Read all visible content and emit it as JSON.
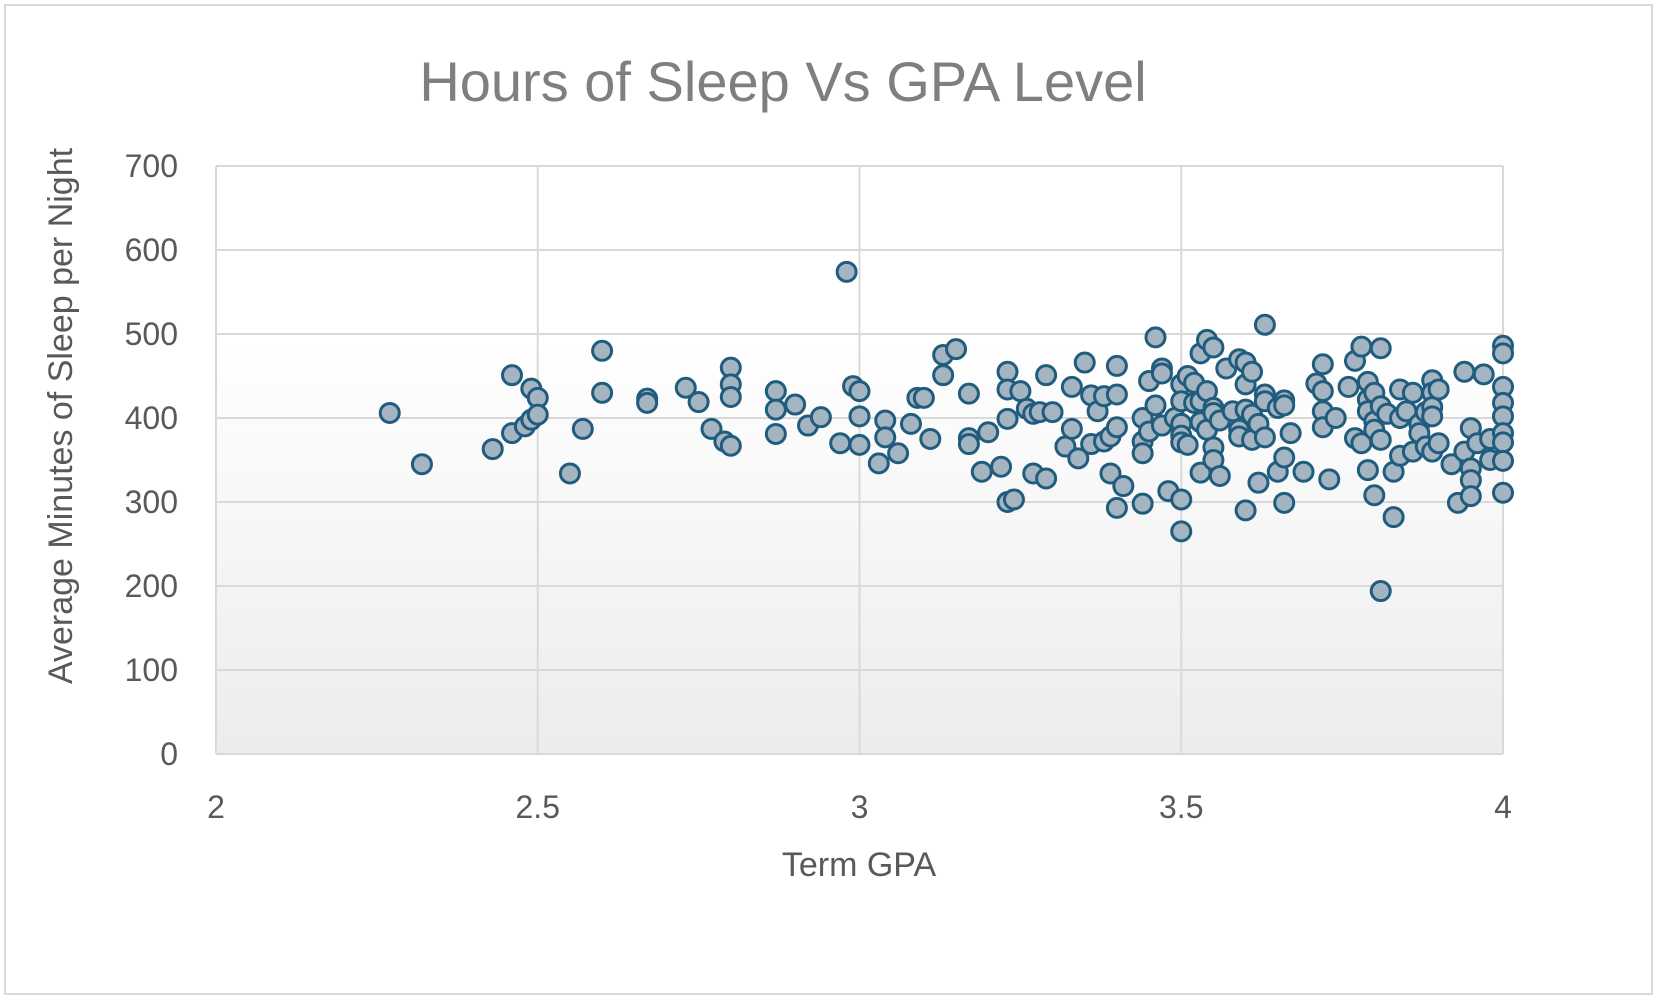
{
  "chart_data": {
    "type": "scatter",
    "title": "Hours of Sleep Vs GPA Level",
    "xlabel": "Term GPA",
    "ylabel": "Average Minutes of Sleep per Night",
    "xlim": [
      2,
      4
    ],
    "ylim": [
      0,
      700
    ],
    "xticks": [
      "2",
      "2.5",
      "3",
      "3.5",
      "4"
    ],
    "yticks": [
      "0",
      "100",
      "200",
      "300",
      "400",
      "500",
      "600",
      "700"
    ],
    "grid": true,
    "legend": "none",
    "marker_fill": "#a5b4c1",
    "marker_stroke": "#1f5c7e",
    "points": [
      [
        2.27,
        406
      ],
      [
        2.32,
        345
      ],
      [
        2.43,
        363
      ],
      [
        2.46,
        451
      ],
      [
        2.46,
        382
      ],
      [
        2.48,
        390
      ],
      [
        2.49,
        435
      ],
      [
        2.49,
        398
      ],
      [
        2.5,
        424
      ],
      [
        2.5,
        404
      ],
      [
        2.55,
        334
      ],
      [
        2.57,
        387
      ],
      [
        2.6,
        480
      ],
      [
        2.6,
        430
      ],
      [
        2.67,
        423
      ],
      [
        2.67,
        418
      ],
      [
        2.73,
        436
      ],
      [
        2.75,
        419
      ],
      [
        2.77,
        387
      ],
      [
        2.79,
        372
      ],
      [
        2.8,
        460
      ],
      [
        2.8,
        440
      ],
      [
        2.8,
        425
      ],
      [
        2.8,
        367
      ],
      [
        2.87,
        432
      ],
      [
        2.87,
        410
      ],
      [
        2.87,
        381
      ],
      [
        2.9,
        416
      ],
      [
        2.92,
        391
      ],
      [
        2.94,
        401
      ],
      [
        2.97,
        370
      ],
      [
        2.98,
        574
      ],
      [
        2.99,
        438
      ],
      [
        3.0,
        432
      ],
      [
        3.0,
        402
      ],
      [
        3.0,
        368
      ],
      [
        3.03,
        346
      ],
      [
        3.04,
        397
      ],
      [
        3.04,
        377
      ],
      [
        3.06,
        358
      ],
      [
        3.08,
        393
      ],
      [
        3.09,
        424
      ],
      [
        3.1,
        424
      ],
      [
        3.11,
        375
      ],
      [
        3.13,
        475
      ],
      [
        3.13,
        451
      ],
      [
        3.15,
        482
      ],
      [
        3.17,
        429
      ],
      [
        3.17,
        376
      ],
      [
        3.17,
        369
      ],
      [
        3.19,
        336
      ],
      [
        3.2,
        383
      ],
      [
        3.22,
        342
      ],
      [
        3.23,
        455
      ],
      [
        3.23,
        434
      ],
      [
        3.23,
        399
      ],
      [
        3.23,
        300
      ],
      [
        3.24,
        303
      ],
      [
        3.25,
        432
      ],
      [
        3.26,
        411
      ],
      [
        3.27,
        405
      ],
      [
        3.27,
        334
      ],
      [
        3.28,
        407
      ],
      [
        3.29,
        451
      ],
      [
        3.29,
        328
      ],
      [
        3.3,
        407
      ],
      [
        3.32,
        366
      ],
      [
        3.33,
        437
      ],
      [
        3.33,
        387
      ],
      [
        3.34,
        352
      ],
      [
        3.35,
        466
      ],
      [
        3.36,
        427
      ],
      [
        3.36,
        369
      ],
      [
        3.37,
        408
      ],
      [
        3.38,
        426
      ],
      [
        3.38,
        372
      ],
      [
        3.39,
        378
      ],
      [
        3.39,
        334
      ],
      [
        3.4,
        462
      ],
      [
        3.4,
        428
      ],
      [
        3.4,
        389
      ],
      [
        3.4,
        293
      ],
      [
        3.41,
        319
      ],
      [
        3.44,
        400
      ],
      [
        3.44,
        372
      ],
      [
        3.44,
        358
      ],
      [
        3.44,
        298
      ],
      [
        3.45,
        444
      ],
      [
        3.45,
        384
      ],
      [
        3.46,
        496
      ],
      [
        3.46,
        415
      ],
      [
        3.47,
        459
      ],
      [
        3.47,
        453
      ],
      [
        3.47,
        391
      ],
      [
        3.48,
        313
      ],
      [
        3.49,
        400
      ],
      [
        3.5,
        440
      ],
      [
        3.5,
        420
      ],
      [
        3.5,
        393
      ],
      [
        3.5,
        379
      ],
      [
        3.5,
        371
      ],
      [
        3.5,
        303
      ],
      [
        3.5,
        265
      ],
      [
        3.51,
        450
      ],
      [
        3.51,
        368
      ],
      [
        3.52,
        442
      ],
      [
        3.52,
        418
      ],
      [
        3.53,
        477
      ],
      [
        3.53,
        420
      ],
      [
        3.53,
        395
      ],
      [
        3.53,
        335
      ],
      [
        3.54,
        493
      ],
      [
        3.54,
        432
      ],
      [
        3.54,
        386
      ],
      [
        3.55,
        484
      ],
      [
        3.55,
        412
      ],
      [
        3.55,
        406
      ],
      [
        3.55,
        365
      ],
      [
        3.55,
        350
      ],
      [
        3.56,
        397
      ],
      [
        3.56,
        331
      ],
      [
        3.57,
        459
      ],
      [
        3.58,
        408
      ],
      [
        3.59,
        470
      ],
      [
        3.59,
        386
      ],
      [
        3.59,
        378
      ],
      [
        3.6,
        466
      ],
      [
        3.6,
        440
      ],
      [
        3.6,
        410
      ],
      [
        3.6,
        290
      ],
      [
        3.61,
        455
      ],
      [
        3.61,
        404
      ],
      [
        3.61,
        374
      ],
      [
        3.62,
        393
      ],
      [
        3.62,
        323
      ],
      [
        3.63,
        511
      ],
      [
        3.63,
        428
      ],
      [
        3.63,
        420
      ],
      [
        3.63,
        377
      ],
      [
        3.65,
        412
      ],
      [
        3.65,
        336
      ],
      [
        3.66,
        421
      ],
      [
        3.66,
        415
      ],
      [
        3.66,
        353
      ],
      [
        3.66,
        299
      ],
      [
        3.67,
        382
      ],
      [
        3.69,
        336
      ],
      [
        3.71,
        441
      ],
      [
        3.72,
        464
      ],
      [
        3.72,
        432
      ],
      [
        3.72,
        408
      ],
      [
        3.72,
        389
      ],
      [
        3.73,
        327
      ],
      [
        3.74,
        400
      ],
      [
        3.76,
        437
      ],
      [
        3.77,
        468
      ],
      [
        3.77,
        376
      ],
      [
        3.78,
        485
      ],
      [
        3.78,
        370
      ],
      [
        3.79,
        443
      ],
      [
        3.79,
        422
      ],
      [
        3.79,
        408
      ],
      [
        3.79,
        338
      ],
      [
        3.8,
        430
      ],
      [
        3.8,
        396
      ],
      [
        3.8,
        386
      ],
      [
        3.8,
        308
      ],
      [
        3.81,
        483
      ],
      [
        3.81,
        414
      ],
      [
        3.81,
        374
      ],
      [
        3.81,
        194
      ],
      [
        3.82,
        405
      ],
      [
        3.83,
        336
      ],
      [
        3.83,
        282
      ],
      [
        3.84,
        434
      ],
      [
        3.84,
        400
      ],
      [
        3.84,
        355
      ],
      [
        3.85,
        408
      ],
      [
        3.86,
        430
      ],
      [
        3.86,
        360
      ],
      [
        3.87,
        393
      ],
      [
        3.87,
        382
      ],
      [
        3.88,
        407
      ],
      [
        3.88,
        366
      ],
      [
        3.89,
        445
      ],
      [
        3.89,
        430
      ],
      [
        3.89,
        413
      ],
      [
        3.89,
        402
      ],
      [
        3.89,
        360
      ],
      [
        3.9,
        434
      ],
      [
        3.9,
        370
      ],
      [
        3.92,
        345
      ],
      [
        3.93,
        299
      ],
      [
        3.94,
        455
      ],
      [
        3.94,
        360
      ],
      [
        3.95,
        388
      ],
      [
        3.95,
        340
      ],
      [
        3.95,
        326
      ],
      [
        3.95,
        307
      ],
      [
        3.96,
        370
      ],
      [
        3.97,
        452
      ],
      [
        3.98,
        375
      ],
      [
        3.98,
        350
      ],
      [
        4.0,
        486
      ],
      [
        4.0,
        477
      ],
      [
        4.0,
        437
      ],
      [
        4.0,
        418
      ],
      [
        4.0,
        402
      ],
      [
        4.0,
        382
      ],
      [
        4.0,
        371
      ],
      [
        4.0,
        349
      ],
      [
        4.0,
        311
      ]
    ]
  }
}
